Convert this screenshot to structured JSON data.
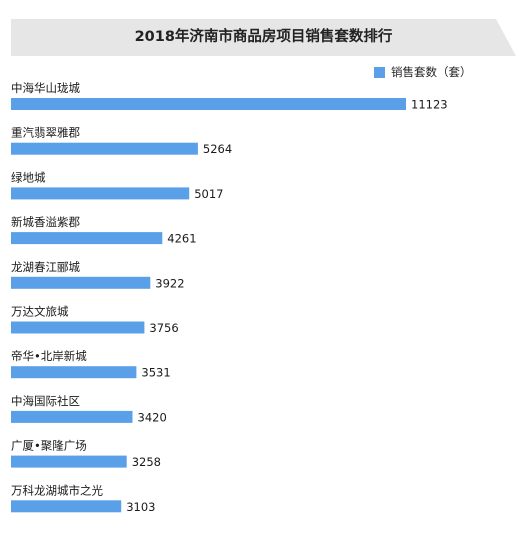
{
  "chart_data": {
    "type": "bar",
    "orientation": "horizontal",
    "title": "2018年济南市商品房项目销售套数排行",
    "legend": {
      "label": "销售套数（套）",
      "placement": "top-right"
    },
    "categories": [
      "中海华山珑城",
      "重汽翡翠雅郡",
      "绿地城",
      "新城香溢紫郡",
      "龙湖春江郦城",
      "万达文旅城",
      "帝华•北岸新城",
      "中海国际社区",
      "广厦•聚隆广场",
      "万科龙湖城市之光"
    ],
    "series": [
      {
        "values": [
          11123,
          5264,
          5017,
          4261,
          3922,
          3756,
          3531,
          3420,
          3258,
          3103
        ]
      }
    ],
    "grid": false,
    "bar_color": "#5aa0e8",
    "title_band_color": "#e6e6e6"
  }
}
